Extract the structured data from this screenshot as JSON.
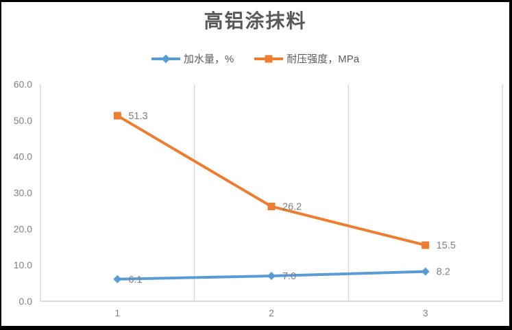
{
  "chart_data": {
    "type": "line",
    "title": "高铝涂抹料",
    "categories": [
      "1",
      "2",
      "3"
    ],
    "series": [
      {
        "name": "加水量，%",
        "color": "#5B9BD5",
        "marker": "diamond",
        "values": [
          6.1,
          7.0,
          8.2
        ],
        "data_labels": [
          "6.1",
          "7.0",
          "8.2"
        ]
      },
      {
        "name": "耐压强度，MPa",
        "color": "#ED7D31",
        "marker": "square",
        "values": [
          51.3,
          26.2,
          15.5
        ],
        "data_labels": [
          "51.3",
          "26.2",
          "15.5"
        ]
      }
    ],
    "y_axis": {
      "min": 0,
      "max": 60,
      "step": 10,
      "tick_labels": [
        "0.0",
        "10.0",
        "20.0",
        "30.0",
        "40.0",
        "50.0",
        "60.0"
      ]
    },
    "x_axis": {
      "tick_labels": [
        "1",
        "2",
        "3"
      ]
    },
    "grid": "vertical-between-categories-only",
    "legend_position": "top"
  },
  "colors": {
    "title_text": "#595959",
    "legend_text": "#595959",
    "axis_line": "#D9D9D9",
    "gridline": "#D9D9D9",
    "tick_label": "#808080",
    "data_label": "#808080",
    "frame_border": "#000000",
    "background": "#FFFFFF"
  }
}
